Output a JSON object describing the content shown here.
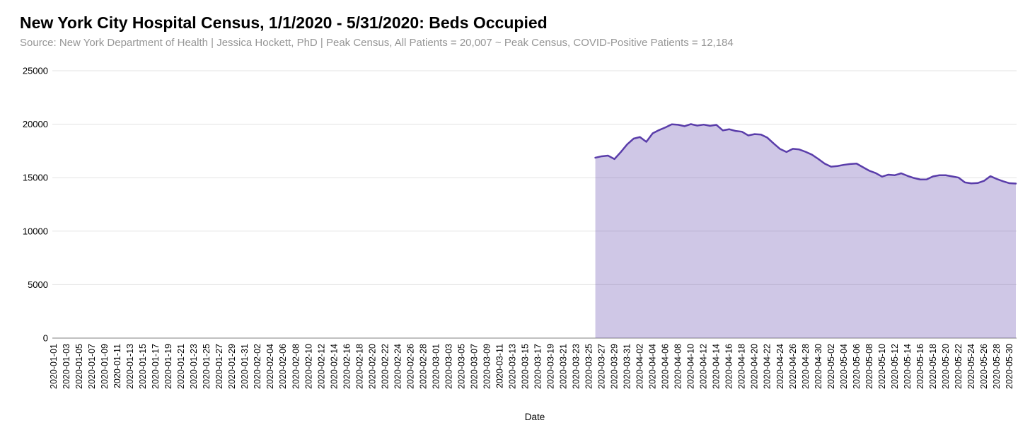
{
  "header": {
    "title": "New York City Hospital Census, 1/1/2020 - 5/31/2020: Beds Occupied",
    "subtitle": "Source: New York Department of Health | Jessica Hockett, PhD | Peak Census, All Patients = 20,007 ~ Peak Census, COVID-Positive Patients = 12,184"
  },
  "chart_data": {
    "type": "area",
    "title": "New York City Hospital Census, 1/1/2020 - 5/31/2020: Beds Occupied",
    "xlabel": "Date",
    "ylabel": "",
    "ylim": [
      0,
      25000
    ],
    "y_ticks": [
      0,
      5000,
      10000,
      15000,
      20000,
      25000
    ],
    "grid": true,
    "legend": "none",
    "x_range_start": "2020-01-01",
    "x_range_end": "2020-05-31",
    "x_tick_labels": [
      "2020-01-01",
      "2020-01-03",
      "2020-01-05",
      "2020-01-07",
      "2020-01-09",
      "2020-01-11",
      "2020-01-13",
      "2020-01-15",
      "2020-01-17",
      "2020-01-19",
      "2020-01-21",
      "2020-01-23",
      "2020-01-25",
      "2020-01-27",
      "2020-01-29",
      "2020-01-31",
      "2020-02-02",
      "2020-02-04",
      "2020-02-06",
      "2020-02-08",
      "2020-02-10",
      "2020-02-12",
      "2020-02-14",
      "2020-02-16",
      "2020-02-18",
      "2020-02-20",
      "2020-02-22",
      "2020-02-24",
      "2020-02-26",
      "2020-02-28",
      "2020-03-01",
      "2020-03-03",
      "2020-03-05",
      "2020-03-07",
      "2020-03-09",
      "2020-03-11",
      "2020-03-13",
      "2020-03-15",
      "2020-03-17",
      "2020-03-19",
      "2020-03-21",
      "2020-03-23",
      "2020-03-25",
      "2020-03-27",
      "2020-03-29",
      "2020-03-31",
      "2020-04-02",
      "2020-04-04",
      "2020-04-06",
      "2020-04-08",
      "2020-04-10",
      "2020-04-12",
      "2020-04-14",
      "2020-04-16",
      "2020-04-18",
      "2020-04-20",
      "2020-04-22",
      "2020-04-24",
      "2020-04-26",
      "2020-04-28",
      "2020-04-30",
      "2020-05-02",
      "2020-05-04",
      "2020-05-06",
      "2020-05-08",
      "2020-05-10",
      "2020-05-12",
      "2020-05-14",
      "2020-05-16",
      "2020-05-18",
      "2020-05-20",
      "2020-05-22",
      "2020-05-24",
      "2020-05-26",
      "2020-05-28",
      "2020-05-30"
    ],
    "line_color": "#5a3daa",
    "fill_color": "rgba(90,61,170,0.29)",
    "series": [
      {
        "name": "Beds Occupied",
        "dates": [
          "2020-03-26",
          "2020-03-27",
          "2020-03-28",
          "2020-03-29",
          "2020-03-30",
          "2020-03-31",
          "2020-04-01",
          "2020-04-02",
          "2020-04-03",
          "2020-04-04",
          "2020-04-05",
          "2020-04-06",
          "2020-04-07",
          "2020-04-08",
          "2020-04-09",
          "2020-04-10",
          "2020-04-11",
          "2020-04-12",
          "2020-04-13",
          "2020-04-14",
          "2020-04-15",
          "2020-04-16",
          "2020-04-17",
          "2020-04-18",
          "2020-04-19",
          "2020-04-20",
          "2020-04-21",
          "2020-04-22",
          "2020-04-23",
          "2020-04-24",
          "2020-04-25",
          "2020-04-26",
          "2020-04-27",
          "2020-04-28",
          "2020-04-29",
          "2020-04-30",
          "2020-05-01",
          "2020-05-02",
          "2020-05-03",
          "2020-05-04",
          "2020-05-05",
          "2020-05-06",
          "2020-05-07",
          "2020-05-08",
          "2020-05-09",
          "2020-05-10",
          "2020-05-11",
          "2020-05-12",
          "2020-05-13",
          "2020-05-14",
          "2020-05-15",
          "2020-05-16",
          "2020-05-17",
          "2020-05-18",
          "2020-05-19",
          "2020-05-20",
          "2020-05-21",
          "2020-05-22",
          "2020-05-23",
          "2020-05-24",
          "2020-05-25",
          "2020-05-26",
          "2020-05-27",
          "2020-05-28",
          "2020-05-29",
          "2020-05-30",
          "2020-05-31"
        ],
        "values": [
          16870,
          17000,
          17060,
          16740,
          17400,
          18120,
          18650,
          18800,
          18350,
          19150,
          19450,
          19700,
          19990,
          19950,
          19810,
          20007,
          19870,
          19960,
          19850,
          19940,
          19420,
          19530,
          19370,
          19300,
          18950,
          19070,
          19030,
          18740,
          18190,
          17680,
          17400,
          17700,
          17640,
          17420,
          17150,
          16750,
          16310,
          16030,
          16090,
          16200,
          16280,
          16320,
          15980,
          15650,
          15430,
          15100,
          15280,
          15230,
          15410,
          15170,
          14970,
          14830,
          14840,
          15120,
          15230,
          15230,
          15120,
          15010,
          14560,
          14470,
          14500,
          14700,
          15140,
          14880,
          14660,
          14480,
          14450
        ]
      }
    ]
  }
}
